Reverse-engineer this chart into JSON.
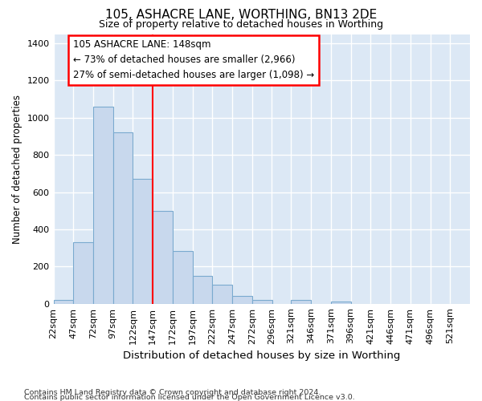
{
  "title": "105, ASHACRE LANE, WORTHING, BN13 2DE",
  "subtitle": "Size of property relative to detached houses in Worthing",
  "xlabel": "Distribution of detached houses by size in Worthing",
  "ylabel": "Number of detached properties",
  "footnote_line1": "Contains HM Land Registry data © Crown copyright and database right 2024.",
  "footnote_line2": "Contains public sector information licensed under the Open Government Licence v3.0.",
  "bar_color": "#c8d8ed",
  "bar_edge_color": "#7aaacf",
  "plot_bg_color": "#dce8f5",
  "fig_bg_color": "#ffffff",
  "ann_line1": "105 ASHACRE LANE: 148sqm",
  "ann_line2": "← 73% of detached houses are smaller (2,966)",
  "ann_line3": "27% of semi-detached houses are larger (1,098) →",
  "categories": [
    "22sqm",
    "47sqm",
    "72sqm",
    "97sqm",
    "122sqm",
    "147sqm",
    "172sqm",
    "197sqm",
    "222sqm",
    "247sqm",
    "272sqm",
    "296sqm",
    "321sqm",
    "346sqm",
    "371sqm",
    "396sqm",
    "421sqm",
    "446sqm",
    "471sqm",
    "496sqm",
    "521sqm"
  ],
  "bin_starts": [
    22,
    47,
    72,
    97,
    122,
    147,
    172,
    197,
    222,
    247,
    272,
    296,
    321,
    346,
    371,
    396,
    421,
    446,
    471,
    496,
    521
  ],
  "bin_width": 25,
  "values": [
    20,
    330,
    1060,
    920,
    670,
    500,
    285,
    150,
    100,
    40,
    20,
    0,
    20,
    0,
    10,
    0,
    0,
    0,
    0,
    0,
    0
  ],
  "red_line_x": 147,
  "ylim_max": 1450,
  "yticks": [
    0,
    200,
    400,
    600,
    800,
    1000,
    1200,
    1400
  ]
}
